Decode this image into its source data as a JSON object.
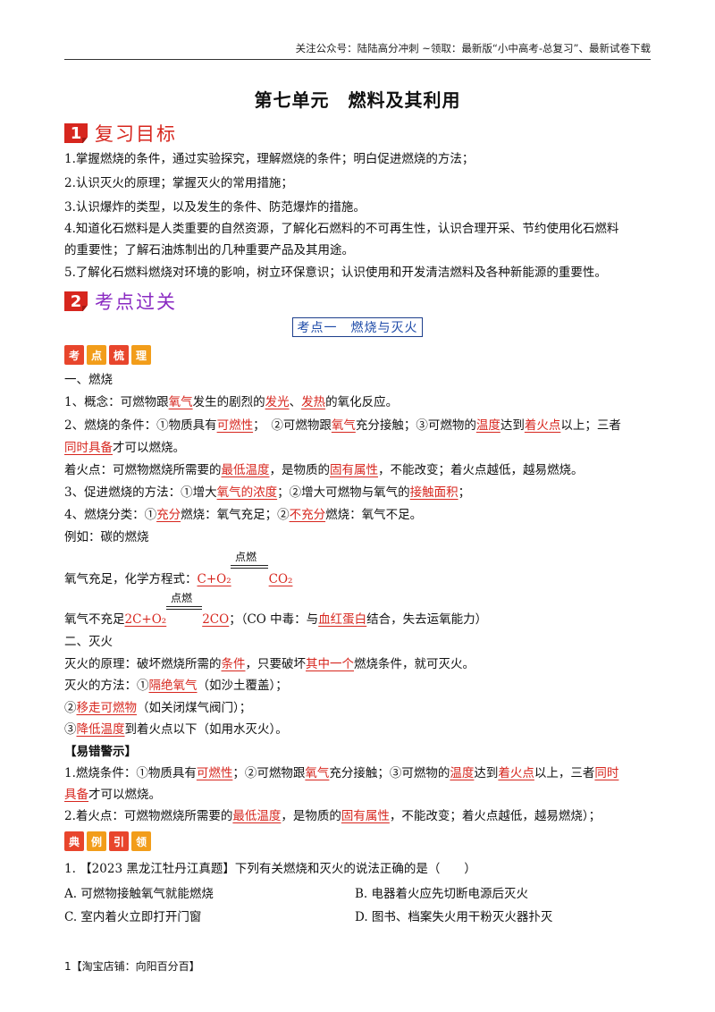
{
  "header": {
    "note": "关注公众号：陆陆高分冲刺 ~领取：最新版“小中高考-总复习”、最新试卷下载"
  },
  "title": "第七单元　燃料及其利用",
  "section1": {
    "num": "1",
    "label": "复习目标"
  },
  "goals": [
    "1.掌握燃烧的条件，通过实验探究，理解燃烧的条件；明白促进燃烧的方法；",
    "2.认识灭火的原理；掌握灭火的常用措施；",
    "3.认识爆炸的类型，以及发生的条件、防范爆炸的措施。",
    "4.知道化石燃料是人类重要的自然资源，了解化石燃料的不可再生性，认识合理开采、节约使用化石燃料",
    "的重要性；了解石油炼制出的几种重要产品及其用途。",
    "5.了解化石燃料燃烧对环境的影响，树立环保意识；认识使用和开发清洁燃料及各种新能源的重要性。"
  ],
  "section2": {
    "num": "2",
    "label": "考点过关"
  },
  "kaodian_title": "考点一　燃烧与灭火",
  "tags1": [
    "考",
    "点",
    "梳",
    "理"
  ],
  "content": {
    "h1": "一、燃烧",
    "l1a": "1、概念：可燃物跟",
    "l1b": "氧气",
    "l1c": "发生的剧烈的",
    "l1d": "发光",
    "l1e": "、",
    "l1f": "发热",
    "l1g": "的氧化反应。",
    "l2a": "2、燃烧的条件：①物质具有",
    "l2b": "可燃性",
    "l2c": "；　②可燃物跟",
    "l2d": "氧气",
    "l2e": "充分接触；③可燃物的",
    "l2f": "温度",
    "l2g": "达到",
    "l2h": "着火点",
    "l2i": "以上；三者",
    "l3a": "同时具备",
    "l3b": "才可以燃烧。",
    "l4a": "着火点：可燃物燃烧所需要的",
    "l4b": "最低温度",
    "l4c": "，是物质的",
    "l4d": "固有属性",
    "l4e": "，不能改变；着火点越低，越易燃烧。",
    "l5a": "3、促进燃烧的方法：①增大",
    "l5b": "氧气的浓度",
    "l5c": "；②增大可燃物与氧气的",
    "l5d": "接触面积",
    "l5e": "；",
    "l6a": "4、燃烧分类：①",
    "l6b": "充分",
    "l6c": "燃烧：氧气充足；②",
    "l6d": "不充分",
    "l6e": "燃烧：氧气不足。",
    "l7": "例如：碳的燃烧",
    "eq1_cond": "点燃",
    "eq1a": "氧气充足，化学方程式：",
    "eq1b": "C+O₂",
    "eq1c": "CO₂",
    "eq2_cond": "点燃",
    "eq2a": "氧气不充足",
    "eq2b": "2C+O₂",
    "eq2c": "2CO",
    "eq2d": "；（CO 中毒：与",
    "eq2e": "血红蛋白",
    "eq2f": "结合，失去运氧能力）",
    "h2": "二、灭火",
    "m1a": "灭火的原理：破坏燃烧所需的",
    "m1b": "条件",
    "m1c": "，只要破坏",
    "m1d": "其中一个",
    "m1e": "燃烧条件，就可灭火。",
    "m2a": "灭火的方法：①",
    "m2b": "隔绝氧气",
    "m2c": "（如沙土覆盖）；",
    "m3a": "②",
    "m3b": "移走可燃物",
    "m3c": "（如关闭煤气阀门）；",
    "m4a": "③",
    "m4b": "降低温度",
    "m4c": "到着火点以下（如用水灭火）。",
    "warn_title": "【易错警示】",
    "w1a": "1.燃烧条件：①物质具有",
    "w1b": "可燃性",
    "w1c": "；②可燃物跟",
    "w1d": "氧气",
    "w1e": "充分接触；③可燃物的",
    "w1f": "温度",
    "w1g": "达到",
    "w1h": "着火点",
    "w1i": "以上，三者",
    "w1j": "同时",
    "w2a": "具备",
    "w2b": "才可以燃烧。",
    "w3a": "2.着火点：可燃物燃烧所需要的",
    "w3b": "最低温度",
    "w3c": "，是物质的",
    "w3d": "固有属性",
    "w3e": "，不能改变；着火点越低，越易燃烧）；"
  },
  "tags2": [
    "典",
    "例",
    "引",
    "领"
  ],
  "question": {
    "stem": "1. 【2023 黑龙江牡丹江真题】下列有关燃烧和灭火的说法正确的是（　　）",
    "A": "A. 可燃物接触氧气就能燃烧",
    "B": "B. 电器着火应先切断电源后灭火",
    "C": "C. 室内着火立即打开门窗",
    "D": "D. 图书、档案失火用干粉灭火器扑灭"
  },
  "footer": {
    "text": "1【淘宝店铺：向阳百分百】"
  }
}
